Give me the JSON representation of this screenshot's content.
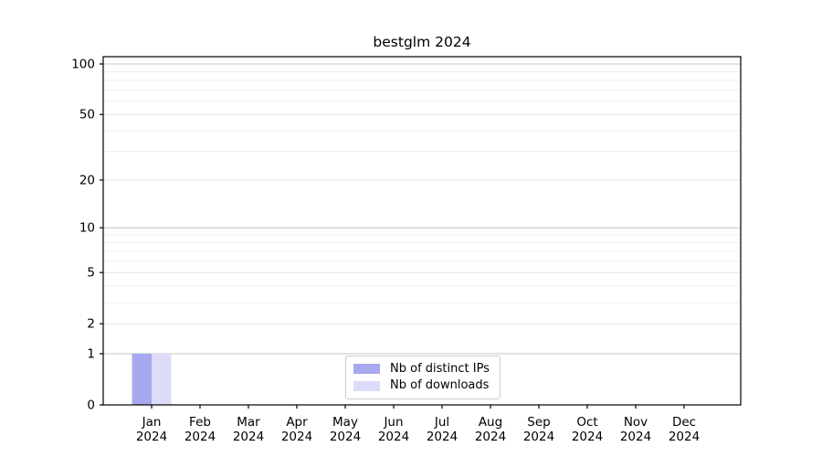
{
  "chart_data": {
    "type": "bar",
    "title": "bestglm 2024",
    "categories": [
      "Jan",
      "Feb",
      "Mar",
      "Apr",
      "May",
      "Jun",
      "Jul",
      "Aug",
      "Sep",
      "Oct",
      "Nov",
      "Dec"
    ],
    "x_tick_year": "2024",
    "series": [
      {
        "name": "Nb of distinct IPs",
        "color": "#a8a8f0",
        "values": [
          1,
          0,
          0,
          0,
          0,
          0,
          0,
          0,
          0,
          0,
          0,
          0
        ]
      },
      {
        "name": "Nb of downloads",
        "color": "#dcdcf8",
        "values": [
          1,
          0,
          0,
          0,
          0,
          0,
          0,
          0,
          0,
          0,
          0,
          0
        ]
      }
    ],
    "y_axis": {
      "scale": "log1p",
      "ticks": [
        0,
        1,
        2,
        5,
        10,
        20,
        50,
        100
      ],
      "minor_gridlines": [
        3,
        4,
        6,
        7,
        8,
        9,
        30,
        40,
        60,
        70,
        80,
        90
      ],
      "ylim": [
        0,
        110
      ]
    },
    "xlabel": "",
    "ylabel": "",
    "grid": "horizontal",
    "legend_position": "lower-center",
    "colors": {
      "grid_decade": "#c4c4c4",
      "grid_labeled": "#e4e4e4",
      "grid_minor": "#efefef",
      "axis": "#000000",
      "text": "#000000",
      "legend_border": "#cccccc"
    }
  }
}
